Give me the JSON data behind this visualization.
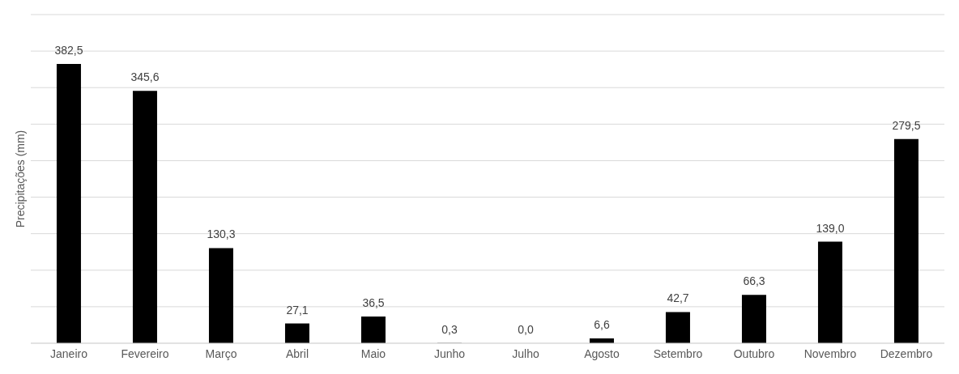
{
  "chart_data": {
    "type": "bar",
    "ylabel": "Precipitações (mm)",
    "categories": [
      "Janeiro",
      "Fevereiro",
      "Março",
      "Abril",
      "Maio",
      "Junho",
      "Julho",
      "Agosto",
      "Setembro",
      "Outubro",
      "Novembro",
      "Dezembro"
    ],
    "values": [
      382.5,
      345.6,
      130.3,
      27.1,
      36.5,
      0.3,
      0.0,
      6.6,
      42.7,
      66.3,
      139.0,
      279.5
    ],
    "value_labels": [
      "382,5",
      "345,6",
      "130,3",
      "27,1",
      "36,5",
      "0,3",
      "0,0",
      "6,6",
      "42,7",
      "66,3",
      "139,0",
      "279,5"
    ],
    "color": "#000000",
    "ylim": [
      0,
      450
    ],
    "yticks": [
      {
        "value": 0,
        "label": null
      },
      {
        "value": 50,
        "label": null
      },
      {
        "value": 100,
        "label": null
      },
      {
        "value": 150,
        "label": null
      },
      {
        "value": 200,
        "label": null
      },
      {
        "value": 250,
        "label": null
      },
      {
        "value": 300,
        "label": null
      },
      {
        "value": 350,
        "label": null
      },
      {
        "value": 400,
        "label": null
      },
      {
        "value": 450,
        "label": null
      }
    ],
    "grid": "y",
    "tick_labels": "x"
  }
}
